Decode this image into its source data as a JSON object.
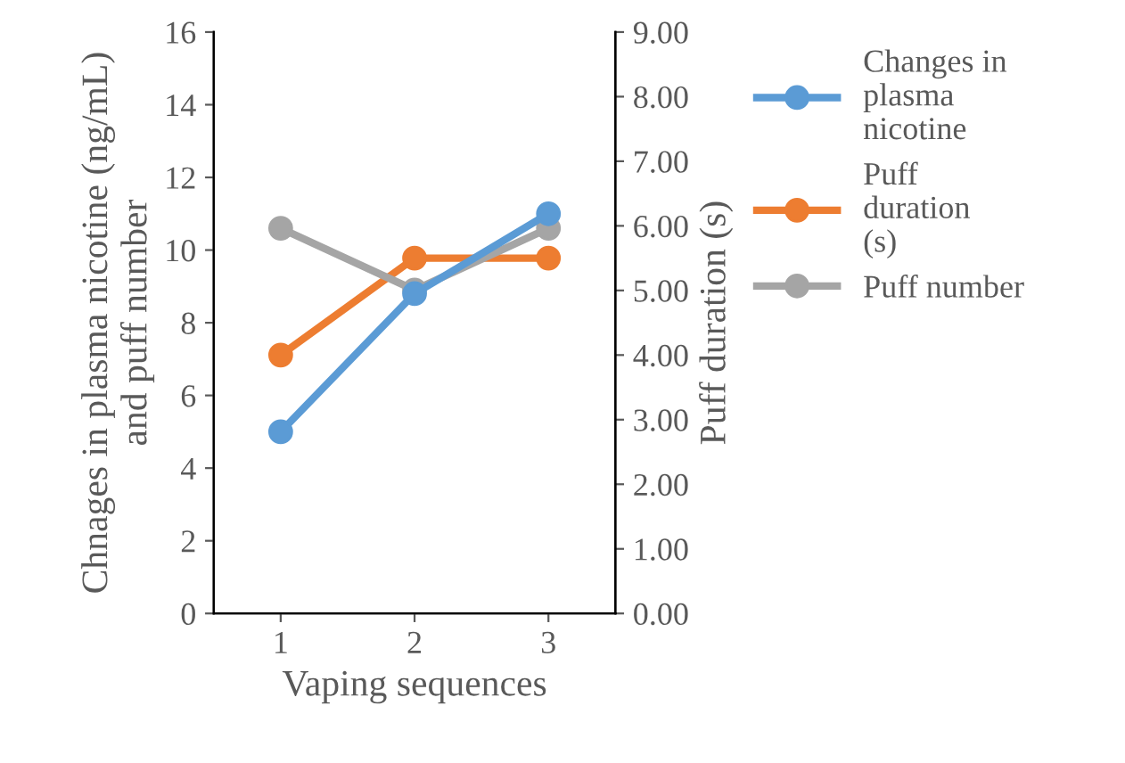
{
  "chart_data": {
    "type": "line",
    "xlabel": "Vaping sequences",
    "ylabel": "Chnages in plasma nicotine (ng/mL)\nand puff number",
    "y2label": "Puff duration (s)",
    "categories": [
      "1",
      "2",
      "3"
    ],
    "series": [
      {
        "name": "Changes in plasma nicotine",
        "color": "#5b9bd5",
        "values": [
          5,
          8.8,
          11
        ]
      },
      {
        "name": "Puff duration (s)",
        "color": "#ed7d31",
        "values": [
          4.0,
          5.5,
          5.5
        ],
        "axis": "y2"
      },
      {
        "name": "Puff number",
        "color": "#a5a5a5",
        "values": [
          10.6,
          8.9,
          10.6
        ]
      }
    ],
    "ylim": [
      0,
      16
    ],
    "yticks": [
      0,
      2,
      4,
      6,
      8,
      10,
      12,
      14,
      16
    ],
    "y2lim": [
      0,
      9
    ],
    "y2ticks": [
      {
        "value": 0,
        "label": "0.00"
      },
      {
        "value": 1,
        "label": "1.00"
      },
      {
        "value": 2,
        "label": "2.00"
      },
      {
        "value": 3,
        "label": "3.00"
      },
      {
        "value": 4,
        "label": "4.00"
      },
      {
        "value": 5,
        "label": "5.00"
      },
      {
        "value": 6,
        "label": "6.00"
      },
      {
        "value": 7,
        "label": "7.00"
      },
      {
        "value": 8,
        "label": "8.00"
      },
      {
        "value": 9,
        "label": "9.00"
      }
    ],
    "marker": "circle",
    "line_style": "solid",
    "legend": "right",
    "grid": false
  }
}
